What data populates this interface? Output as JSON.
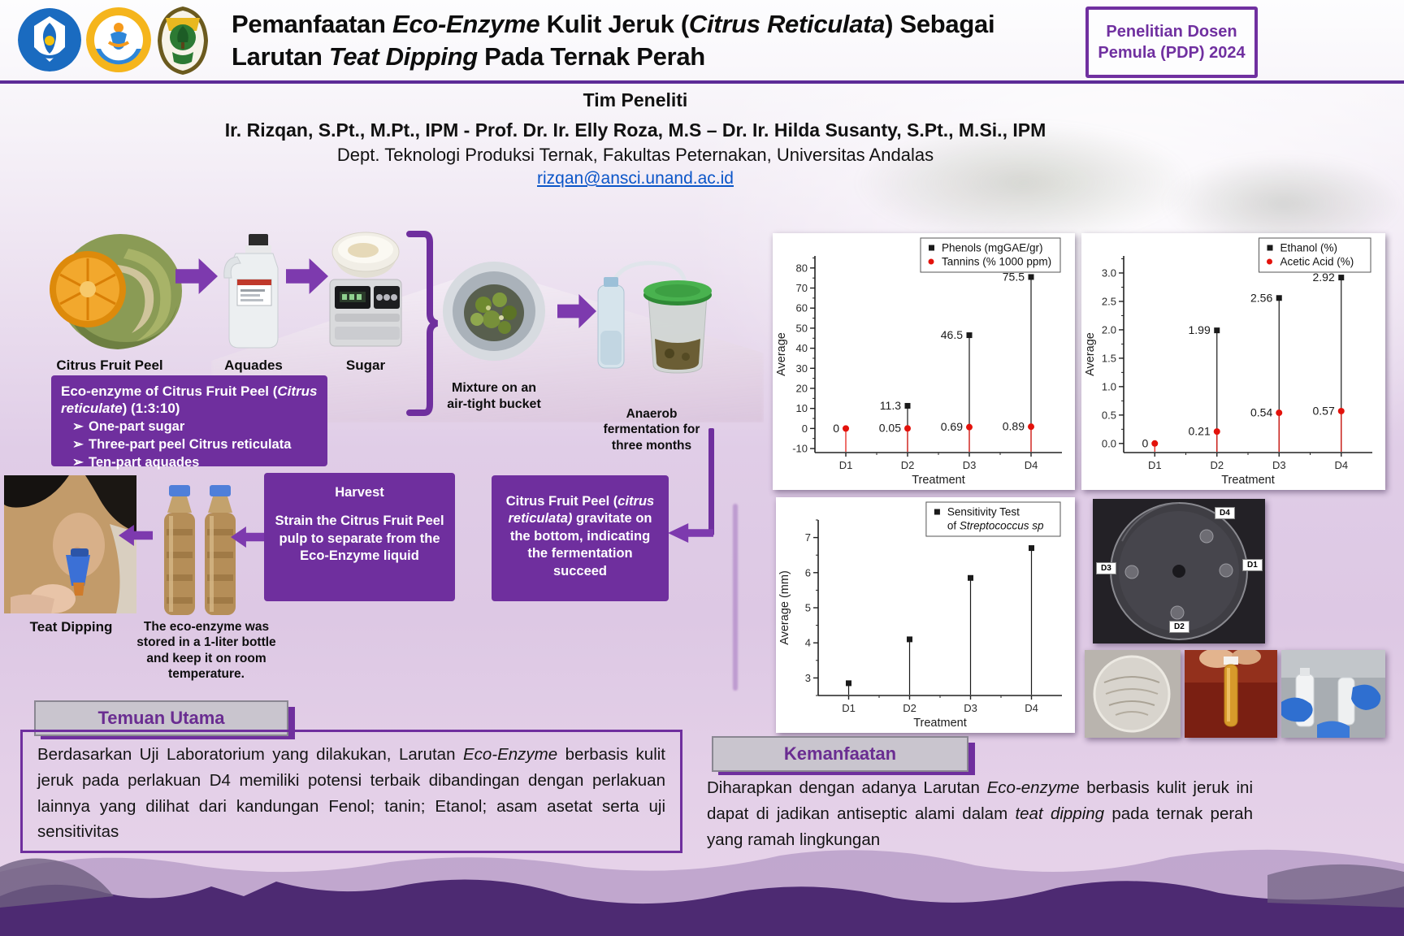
{
  "badge": {
    "line1": "Penelitian Dosen",
    "line2": "Pemula (PDP) 2024"
  },
  "title": {
    "s1": "Pemanfaatan ",
    "s2": "Eco-Enzyme",
    "s3": " Kulit Jeruk (",
    "s4": "Citrus Reticulata",
    "s5": ") Sebagai",
    "s6": "Larutan ",
    "s7": "Teat Dipping",
    "s8": " Pada Ternak Perah"
  },
  "team": {
    "heading": "Tim Peneliti",
    "authors": "Ir. Rizqan, S.Pt., M.Pt., IPM - Prof. Dr. Ir. Elly Roza, M.S – Dr. Ir. Hilda Susanty, S.Pt., M.Si., IPM",
    "dept": "Dept. Teknologi Produksi Ternak, Fakultas Peternakan, Universitas Andalas",
    "email": "rizqan@ansci.unand.ac.id"
  },
  "flow": {
    "step1_label": "Citrus Fruit Peel",
    "step2_label": "Aquades",
    "step3_label": "Sugar",
    "mixture_label": "Mixture on an air-tight bucket",
    "ferment_label": "Anaerob fermentation for three months",
    "recipe": {
      "t1": "Eco-enzyme of Citrus Fruit Peel (",
      "t2": "Citrus reticulate",
      "t3": ") (1:3:10)",
      "bullet": "➢",
      "items": [
        "One-part sugar",
        "Three-part peel Citrus reticulata",
        "Ten-part aquades"
      ]
    },
    "harvest": {
      "title": "Harvest",
      "body": "Strain the Citrus Fruit Peel pulp to separate from the Eco-Enzyme liquid"
    },
    "gravitate": {
      "p1": "Citrus Fruit Peel (",
      "p2": "citrus reticulata)",
      "p3": " gravitate on the bottom, indicating the fermentation succeed"
    },
    "teat_label": "Teat Dipping",
    "bottle_caption": "The eco-enzyme was stored in a 1-liter bottle and keep it on room temperature."
  },
  "findings": {
    "heading": "Temuan Utama",
    "b1": "Berdasarkan Uji Laboratorium yang dilakukan, Larutan ",
    "b2": "Eco-Enzyme",
    "b3": " berbasis kulit jeruk pada perlakuan D4 memiliki potensi terbaik dibandingan dengan perlakuan lainnya yang dilihat dari kandungan Fenol; tanin; Etanol; asam asetat serta uji sensitivitas"
  },
  "benefits": {
    "heading": "Kemanfaatan",
    "b1": "Diharapkan dengan adanya Larutan ",
    "b2": "Eco-enzyme",
    "b3": " berbasis kulit jeruk ini dapat di jadikan antiseptic alami dalam ",
    "b4": "teat dipping",
    "b5": " pada ternak perah yang ramah lingkungan"
  },
  "petri": {
    "labels": [
      "D4",
      "D1",
      "D3",
      "D2"
    ]
  },
  "colors": {
    "accent_purple": "#6f2f9e",
    "badge_purple": "#7030a0",
    "link_blue": "#0a55c8",
    "series_red": "#e3120b",
    "series_black": "#1a1a1a"
  },
  "chart_data": [
    {
      "type": "scatter",
      "categories": [
        "D1",
        "D2",
        "D3",
        "D4"
      ],
      "xlabel": "Treatment",
      "ylabel": "Average",
      "ylim": [
        -12,
        86
      ],
      "yticks": [
        -10,
        0,
        10,
        20,
        30,
        40,
        50,
        60,
        70,
        80
      ],
      "ytick_labels": [
        "-10",
        "0",
        "10",
        "20",
        "30",
        "40",
        "50",
        "60",
        "70",
        "80"
      ],
      "yminor": 5,
      "legend_position": "top-right",
      "series": [
        {
          "name": "Phenols (mgGAE/gr)",
          "marker": "square",
          "color": "#1a1a1a",
          "values": [
            null,
            11.3,
            46.5,
            75.5
          ],
          "labels": [
            "",
            "11.3",
            "46.5",
            "75.5"
          ]
        },
        {
          "name": "Tannins (% 1000 ppm)",
          "marker": "circle",
          "color": "#e3120b",
          "values": [
            0,
            0.05,
            0.69,
            0.89
          ],
          "labels": [
            "0",
            "0.05",
            "0.69",
            "0.89"
          ]
        }
      ]
    },
    {
      "type": "scatter",
      "categories": [
        "D1",
        "D2",
        "D3",
        "D4"
      ],
      "xlabel": "Treatment",
      "ylabel": "Average",
      "ylim": [
        -0.16,
        3.3
      ],
      "yticks": [
        0,
        0.5,
        1,
        1.5,
        2,
        2.5,
        3
      ],
      "ytick_labels": [
        "0.0",
        "0.5",
        "1.0",
        "1.5",
        "2.0",
        "2.5",
        "3.0"
      ],
      "yminor": 0.25,
      "legend_position": "top-right",
      "series": [
        {
          "name": "Ethanol (%)",
          "marker": "square",
          "color": "#1a1a1a",
          "values": [
            null,
            1.99,
            2.56,
            2.92
          ],
          "labels": [
            "",
            "1.99",
            "2.56",
            "2.92"
          ]
        },
        {
          "name": "Acetic Acid (%)",
          "marker": "circle",
          "color": "#e3120b",
          "values": [
            0,
            0.21,
            0.54,
            0.57
          ],
          "labels": [
            "0",
            "0.21",
            "0.54",
            "0.57"
          ]
        }
      ]
    },
    {
      "type": "scatter",
      "categories": [
        "D1",
        "D2",
        "D3",
        "D4"
      ],
      "xlabel": "Treatment",
      "ylabel": "Average (mm)",
      "ylim": [
        2.5,
        7.5
      ],
      "yticks": [
        3,
        4,
        5,
        6,
        7
      ],
      "ytick_labels": [
        "3",
        "4",
        "5",
        "6",
        "7"
      ],
      "yminor": 0.5,
      "legend_position": "top-right",
      "series": [
        {
          "name": "Sensitivity Test",
          "name2_pre": "of ",
          "name2_it": "Streptococcus sp",
          "marker": "square",
          "color": "#1a1a1a",
          "values": [
            2.85,
            4.1,
            5.85,
            6.7
          ],
          "labels": [
            "",
            "",
            "",
            ""
          ]
        }
      ]
    }
  ]
}
